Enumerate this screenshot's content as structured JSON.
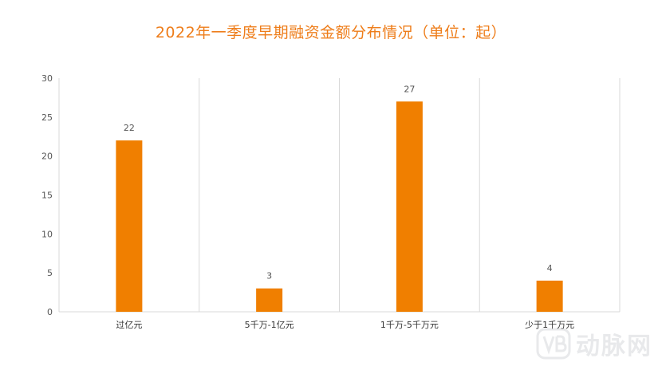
{
  "chart_data": {
    "type": "bar",
    "title": "2022年一季度早期融资金额分布情况（单位：起）",
    "categories": [
      "过亿元",
      "5千万-1亿元",
      "1千万-5千万元",
      "少于1千万元"
    ],
    "values": [
      22,
      3,
      27,
      4
    ],
    "ylim": [
      0,
      30
    ],
    "yticks": [
      0,
      5,
      10,
      15,
      20,
      25,
      30
    ],
    "xlabel": "",
    "ylabel": "",
    "grid": "vertical category separators",
    "legend": "none",
    "bar_color": "#f07f00",
    "data_labels": true
  },
  "watermark": {
    "text": "动脉网",
    "logo_icon": "vb-logo-icon"
  }
}
